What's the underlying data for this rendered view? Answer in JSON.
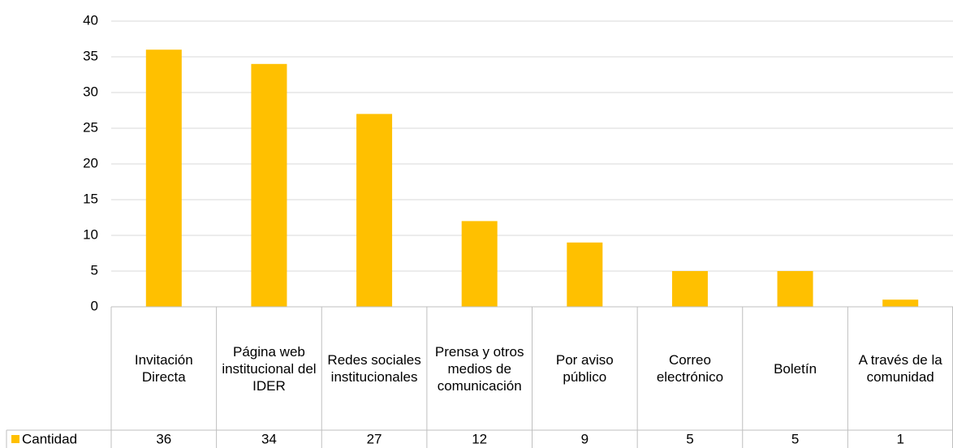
{
  "chart_data": {
    "type": "bar",
    "categories": [
      "Invitación Directa",
      "Página web institucional del IDER",
      "Redes sociales institucionales",
      "Prensa y otros medios de comunicación",
      "Por aviso público",
      "Correo electrónico",
      "Boletín",
      "A través de la comunidad"
    ],
    "series": [
      {
        "name": "Cantidad",
        "color": "#ffc000",
        "values": [
          36,
          34,
          27,
          12,
          9,
          5,
          5,
          1
        ]
      }
    ],
    "ylim": [
      0,
      40
    ],
    "yticks": [
      0,
      5,
      10,
      15,
      20,
      25,
      30,
      35,
      40
    ],
    "grid": true,
    "data_table": true
  }
}
